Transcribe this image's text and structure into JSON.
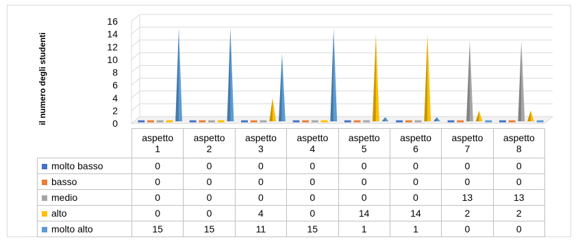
{
  "chart_data": {
    "type": "bar",
    "ylabel": "il numero degli studenti",
    "ylim": [
      0,
      16
    ],
    "yticks": [
      "0",
      "2",
      "4",
      "6",
      "8",
      "10",
      "12",
      "14",
      "16"
    ],
    "grid": true,
    "legend": "data-table-left",
    "categories": [
      [
        "aspetto",
        "1"
      ],
      [
        "aspetto",
        "2"
      ],
      [
        "aspetto",
        "3"
      ],
      [
        "aspetto",
        "4"
      ],
      [
        "aspetto",
        "5"
      ],
      [
        "aspetto",
        "6"
      ],
      [
        "aspetto",
        "7"
      ],
      [
        "aspetto",
        "8"
      ]
    ],
    "series": [
      {
        "name": "molto basso",
        "color": "#4472C4",
        "values": [
          0,
          0,
          0,
          0,
          0,
          0,
          0,
          0
        ]
      },
      {
        "name": "basso",
        "color": "#ED7D31",
        "values": [
          0,
          0,
          0,
          0,
          0,
          0,
          0,
          0
        ]
      },
      {
        "name": "medio",
        "color": "#A5A5A5",
        "values": [
          0,
          0,
          0,
          0,
          0,
          0,
          13,
          13
        ]
      },
      {
        "name": "alto",
        "color": "#FFC000",
        "values": [
          0,
          0,
          4,
          0,
          14,
          14,
          2,
          2
        ]
      },
      {
        "name": "molto alto",
        "color": "#5B9BD5",
        "values": [
          15,
          15,
          11,
          15,
          1,
          1,
          0,
          0
        ]
      }
    ]
  }
}
